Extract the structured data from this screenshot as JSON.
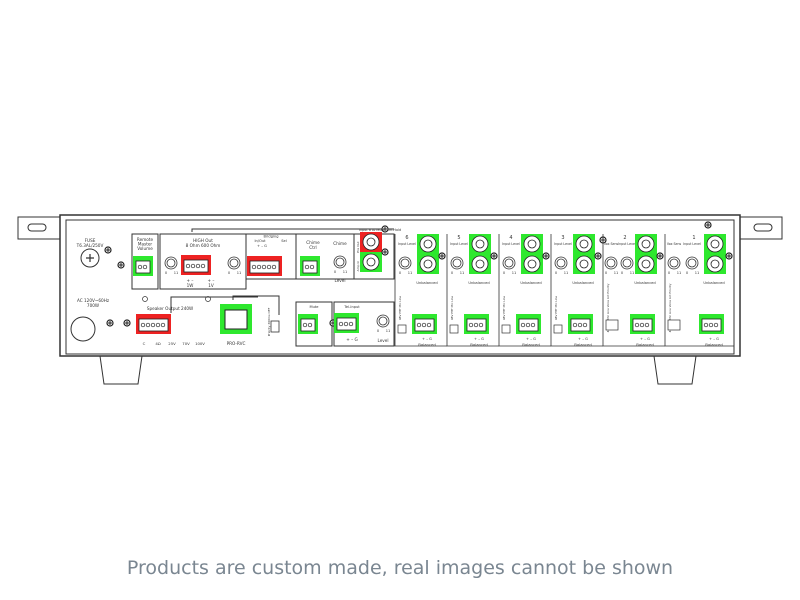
{
  "colors": {
    "green": "#2ee82e",
    "red": "#ee2222",
    "line": "#333333"
  },
  "panel": {
    "fuse": {
      "title": "FUSE",
      "rating": "T6.3AL/250V"
    },
    "ac": {
      "line1": "AC 120V~60Hz",
      "line2": "700W"
    },
    "remote": {
      "l1": "Remote",
      "l2": "Master",
      "l3": "Volume"
    },
    "high_out": {
      "title": "HIGH Out",
      "sub": "8 Ohm  600 Ohm",
      "w": "1W",
      "v": "1V",
      "pm1": "+  –",
      "pm2": "+  –"
    },
    "bridging": {
      "title": "Bridging",
      "inout": "In/Out",
      "sel": "Sel",
      "pins": "+  –  G"
    },
    "chime_ctrl": {
      "l1": "Chime",
      "l2": "Ctrl"
    },
    "chime": {
      "title": "Chime",
      "level": "Level"
    },
    "moh": {
      "label": "Input 6 to Music-On-Hold",
      "pre_out": "Pre Out",
      "amp_in": "Amp In"
    },
    "speaker": {
      "title": "Speaker Output 240W",
      "taps": [
        "C",
        "4Ω",
        "25V",
        "70V",
        "100V"
      ]
    },
    "rvc": "PRO-RVC",
    "priority": "Priority 300ms OFF",
    "mute": "Mute",
    "tel": {
      "title": "Tel-Input",
      "pins": "+  –  G",
      "level": "Level"
    },
    "knob_min": "0",
    "knob_max": "11",
    "channels": [
      {
        "num": "6",
        "input_level": "Input Level",
        "vox": "",
        "switch": "48V PHT Mic Line",
        "unbalanced": "Unbalanced",
        "balanced": "Balanced",
        "pins": "+  –  G"
      },
      {
        "num": "5",
        "input_level": "Input Level",
        "vox": "",
        "switch": "48V PHT Mic Line",
        "unbalanced": "Unbalanced",
        "balanced": "Balanced",
        "pins": "+  –  G"
      },
      {
        "num": "4",
        "input_level": "Input Level",
        "vox": "",
        "switch": "48V PHT Mic Line",
        "unbalanced": "Unbalanced",
        "balanced": "Balanced",
        "pins": "+  –  G"
      },
      {
        "num": "3",
        "input_level": "Input Level",
        "vox": "",
        "switch": "48V PHT Mic Line",
        "unbalanced": "Unbalanced",
        "balanced": "Balanced",
        "pins": "+  –  G"
      },
      {
        "num": "2",
        "input_level": "Input Level",
        "vox": "Vox Sens",
        "switch": "48V PHT Mic Line Voice Act Priority",
        "unbalanced": "Unbalanced",
        "balanced": "Balanced",
        "pins": "+  –  G"
      },
      {
        "num": "1",
        "input_level": "Input Level",
        "vox": "Vox Sens",
        "switch": "48V PHT Mic Line Voice Act Priority",
        "unbalanced": "Unbalanced",
        "balanced": "Balanced",
        "pins": "+  –  G"
      }
    ]
  },
  "caption": "Products are custom made, real images cannot be shown"
}
